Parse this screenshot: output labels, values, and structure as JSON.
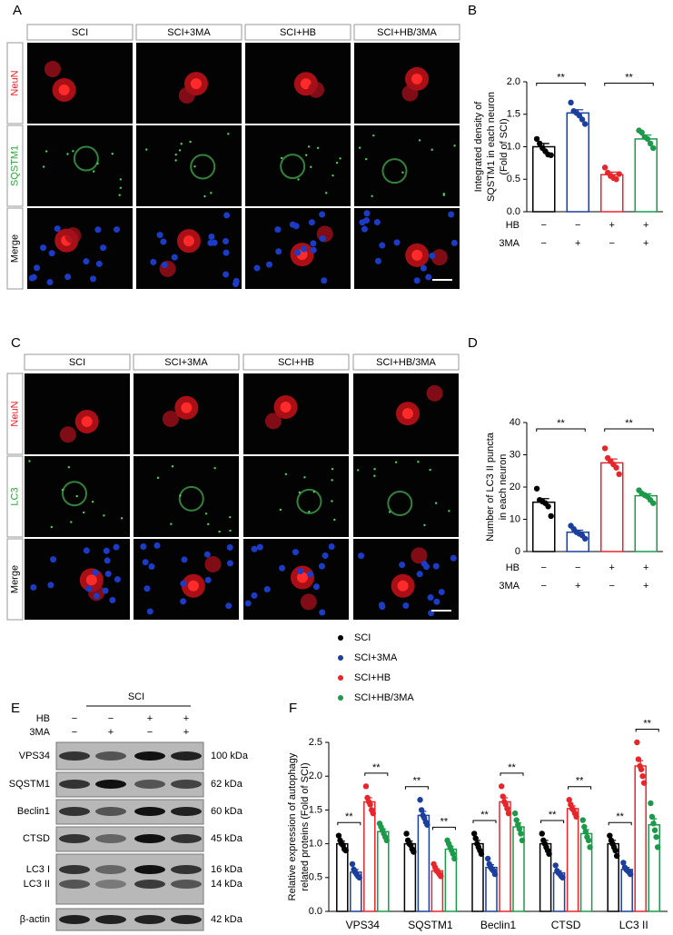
{
  "figure": {
    "panel_labels": [
      "A",
      "B",
      "C",
      "D",
      "E",
      "F"
    ],
    "panel_a": {
      "columns": [
        "SCI",
        "SCI+3MA",
        "SCI+HB",
        "SCI+HB/3MA"
      ],
      "rows": [
        "NeuN",
        "SQSTM1",
        "Merge"
      ]
    },
    "panel_c": {
      "columns": [
        "SCI",
        "SCI+3MA",
        "SCI+HB",
        "SCI+HB/3MA"
      ],
      "rows": [
        "NeuN",
        "LC3",
        "Merge"
      ]
    },
    "panel_e": {
      "group": "SCI",
      "conditions": [
        {
          "name": "HB",
          "signs": [
            "−",
            "−",
            "+",
            "+"
          ]
        },
        {
          "name": "3MA",
          "signs": [
            "−",
            "+",
            "−",
            "+"
          ]
        }
      ],
      "blots": [
        {
          "names": [
            "VPS34"
          ],
          "kda": [
            "100 kDa"
          ]
        },
        {
          "names": [
            "SQSTM1"
          ],
          "kda": [
            "62 kDa"
          ]
        },
        {
          "names": [
            "Beclin1"
          ],
          "kda": [
            "60 kDa"
          ]
        },
        {
          "names": [
            "CTSD"
          ],
          "kda": [
            "45 kDa"
          ]
        },
        {
          "names": [
            "LC3 I",
            "LC3 II"
          ],
          "kda": [
            "16 kDa",
            "14 kDa"
          ]
        },
        {
          "names": [
            "β-actin"
          ],
          "kda": [
            "42 kDa"
          ]
        }
      ]
    }
  },
  "chart_data": [
    {
      "type": "bar",
      "ylabel": [
        "Integrated density of",
        "SQSTM1 in each neuron",
        "(Fold of SCI)"
      ],
      "values": [
        1.0,
        1.52,
        0.57,
        1.12
      ],
      "errors": [
        0.05,
        0.05,
        0.04,
        0.06
      ],
      "points": [
        [
          1.12,
          1.05,
          0.98,
          0.93,
          0.88,
          0.87
        ],
        [
          1.68,
          1.55,
          1.52,
          1.48,
          1.42,
          1.35
        ],
        [
          0.68,
          0.6,
          0.55,
          0.52,
          0.5,
          0.58
        ],
        [
          1.25,
          1.22,
          1.15,
          1.12,
          1.05,
          0.98
        ]
      ],
      "colors": [
        "#000000",
        "#1c3f9e",
        "#e6262b",
        "#1c9a4a"
      ],
      "conditions": [
        {
          "name": "HB",
          "signs": [
            "−",
            "−",
            "+",
            "+"
          ]
        },
        {
          "name": "3MA",
          "signs": [
            "−",
            "+",
            "−",
            "+"
          ]
        }
      ],
      "significance": [
        {
          "label": "**",
          "between": [
            0,
            1
          ]
        },
        {
          "label": "**",
          "between": [
            2,
            3
          ]
        }
      ],
      "ylim": [
        0,
        2
      ],
      "yticks": [
        {
          "value": 0,
          "label": "0.0"
        },
        0.5,
        {
          "value": 1,
          "label": "1.0"
        },
        1.5,
        {
          "value": 2,
          "label": "2.0"
        }
      ]
    },
    {
      "type": "bar",
      "ylabel": [
        "Number of LC3 II puncta",
        "in each neuron"
      ],
      "values": [
        15.3,
        6.0,
        27.5,
        17.3
      ],
      "errors": [
        1.1,
        0.6,
        1.2,
        0.6
      ],
      "points": [
        [
          19.5,
          16,
          15.5,
          15,
          14,
          11
        ],
        [
          8,
          7,
          6,
          5.5,
          5,
          4
        ],
        [
          32,
          29,
          28,
          27,
          26,
          24
        ],
        [
          19,
          18,
          17.5,
          17,
          16,
          15
        ]
      ],
      "colors": [
        "#000000",
        "#1c3f9e",
        "#e6262b",
        "#1c9a4a"
      ],
      "conditions": [
        {
          "name": "HB",
          "signs": [
            "−",
            "−",
            "+",
            "+"
          ]
        },
        {
          "name": "3MA",
          "signs": [
            "−",
            "+",
            "−",
            "+"
          ]
        }
      ],
      "significance": [
        {
          "label": "**",
          "between": [
            0,
            1
          ]
        },
        {
          "label": "**",
          "between": [
            2,
            3
          ]
        }
      ],
      "ylim": [
        0,
        40
      ],
      "yticks": [
        0,
        10,
        20,
        30,
        40
      ]
    },
    {
      "type": "grouped_bar",
      "ylabel": [
        "Relative expression of autophagy",
        "related proteins (Fold of SCI)"
      ],
      "categories": [
        "VPS34",
        "SQSTM1",
        "Beclin1",
        "CTSD",
        "LC3 II"
      ],
      "series": [
        {
          "name": "SCI",
          "color": "#000000",
          "values": [
            1.0,
            1.0,
            1.0,
            1.0,
            1.0
          ],
          "errors": [
            0.04,
            0.04,
            0.05,
            0.05,
            0.05
          ],
          "points": [
            [
              1.12,
              1.05,
              1.0,
              0.98,
              0.92,
              0.9
            ],
            [
              1.15,
              1.05,
              1.0,
              0.98,
              0.92,
              0.88
            ],
            [
              1.15,
              1.08,
              1.0,
              0.95,
              0.9,
              0.85
            ],
            [
              1.15,
              1.05,
              1.0,
              0.95,
              0.9,
              0.85
            ],
            [
              1.12,
              1.05,
              1.0,
              0.95,
              0.9,
              0.82
            ]
          ]
        },
        {
          "name": "SCI+3MA",
          "color": "#1c3f9e",
          "values": [
            0.58,
            1.42,
            0.65,
            0.57,
            0.62
          ],
          "errors": [
            0.04,
            0.06,
            0.04,
            0.03,
            0.03
          ],
          "points": [
            [
              0.7,
              0.62,
              0.58,
              0.55,
              0.52,
              0.5
            ],
            [
              1.65,
              1.5,
              1.42,
              1.38,
              1.32,
              1.28
            ],
            [
              0.78,
              0.7,
              0.65,
              0.62,
              0.6,
              0.55
            ],
            [
              0.68,
              0.6,
              0.57,
              0.55,
              0.52,
              0.5
            ],
            [
              0.72,
              0.65,
              0.62,
              0.6,
              0.58,
              0.55
            ]
          ]
        },
        {
          "name": "SCI+HB",
          "color": "#e6262b",
          "values": [
            1.62,
            0.6,
            1.62,
            1.52,
            2.15
          ],
          "errors": [
            0.06,
            0.03,
            0.06,
            0.04,
            0.08
          ],
          "points": [
            [
              1.85,
              1.68,
              1.62,
              1.58,
              1.5,
              1.45
            ],
            [
              0.7,
              0.65,
              0.6,
              0.58,
              0.55,
              0.52
            ],
            [
              1.85,
              1.7,
              1.62,
              1.58,
              1.52,
              1.45
            ],
            [
              1.65,
              1.58,
              1.52,
              1.5,
              1.45,
              1.4
            ],
            [
              2.5,
              2.25,
              2.15,
              2.1,
              2.0,
              1.9
            ]
          ]
        },
        {
          "name": "SCI+HB/3MA",
          "color": "#1c9a4a",
          "values": [
            1.18,
            0.92,
            1.25,
            1.15,
            1.28
          ],
          "errors": [
            0.04,
            0.04,
            0.06,
            0.06,
            0.09
          ],
          "points": [
            [
              1.3,
              1.25,
              1.2,
              1.15,
              1.1,
              1.05
            ],
            [
              1.05,
              1.0,
              0.95,
              0.9,
              0.85,
              0.78
            ],
            [
              1.45,
              1.35,
              1.28,
              1.22,
              1.15,
              1.05
            ],
            [
              1.35,
              1.25,
              1.18,
              1.1,
              1.05,
              0.95
            ],
            [
              1.6,
              1.4,
              1.3,
              1.2,
              1.1,
              0.95
            ]
          ]
        }
      ],
      "significance": [
        {
          "label": "**",
          "between": [
            0,
            1
          ]
        },
        {
          "label": "**",
          "between": [
            2,
            3
          ]
        }
      ],
      "ylim": [
        0,
        2.5
      ],
      "yticks": [
        {
          "value": 0,
          "label": "0.0"
        },
        0.5,
        {
          "value": 1,
          "label": "1.0"
        },
        1.5,
        {
          "value": 2,
          "label": "2.0"
        },
        2.5
      ]
    }
  ]
}
